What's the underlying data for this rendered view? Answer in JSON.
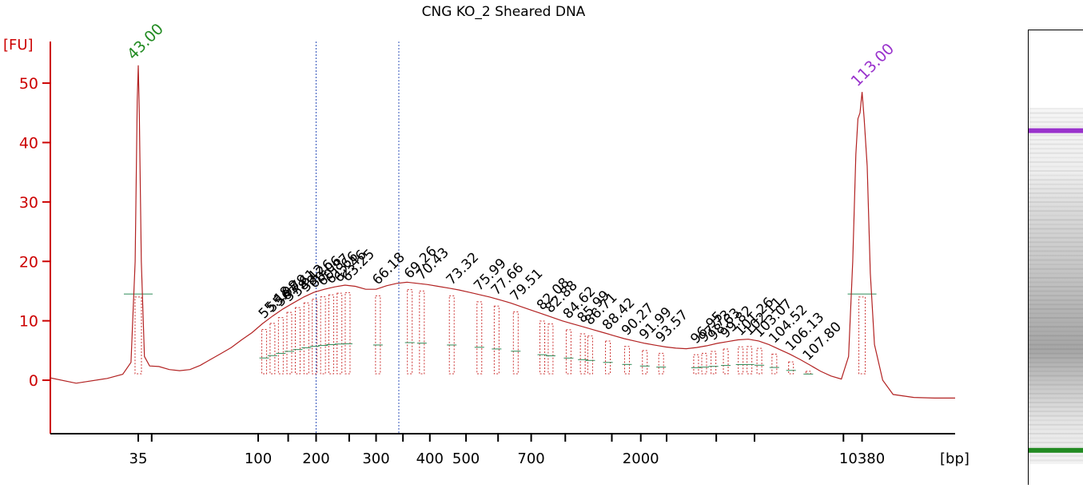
{
  "chart_data": {
    "type": "line",
    "title": "CNG KO_2 Sheared DNA",
    "ylabel": "[FU]",
    "xlabel": "[bp]",
    "ylim": [
      -9,
      57
    ],
    "y_ticks": [
      0,
      10,
      20,
      30,
      40,
      50
    ],
    "x_tick_labels": [
      "35",
      "100",
      "200",
      "300",
      "400",
      "500",
      "700",
      "2000",
      "10380"
    ],
    "x_tick_times": [
      43.0,
      54.6,
      60.2,
      66.0,
      71.2,
      74.7,
      81.0,
      91.6,
      113.0
    ],
    "x_minor_tick_times": [
      44.3,
      57.5,
      63.4,
      68.6,
      77.8,
      84.3,
      88.8,
      94.1,
      98.9,
      102.6,
      111.2
    ],
    "x_time_range": [
      34.5,
      122.0
    ],
    "markers": [
      {
        "label": "43.00",
        "time": 43.0,
        "color": "#228b22"
      },
      {
        "label": "113.00",
        "time": 113.0,
        "color": "#9932cc"
      }
    ],
    "region_lines_time": [
      60.2,
      68.2
    ],
    "peak_labels": [
      "55.18",
      "55.98",
      "56.79",
      "57.61",
      "58.42",
      "59.26",
      "60.06",
      "60.87",
      "61.66",
      "62.46",
      "63.25",
      "66.18",
      "69.26",
      "70.43",
      "73.32",
      "75.99",
      "77.66",
      "79.51",
      "82.08",
      "82.88",
      "84.62",
      "85.99",
      "86.71",
      "88.42",
      "90.27",
      "91.99",
      "93.57",
      "96.95",
      "97.73",
      "98.63",
      "99.82",
      "101.26",
      "102.11",
      "103.07",
      "104.52",
      "106.13",
      "107.80"
    ],
    "series": [
      {
        "points": [
          [
            34.5,
            0.4
          ],
          [
            37,
            -0.5
          ],
          [
            40,
            0.3
          ],
          [
            41.5,
            1.0
          ],
          [
            42.3,
            3.0
          ],
          [
            42.7,
            20
          ],
          [
            42.9,
            47
          ],
          [
            43.0,
            53
          ],
          [
            43.1,
            45
          ],
          [
            43.3,
            20
          ],
          [
            43.6,
            4
          ],
          [
            44.1,
            2.4
          ],
          [
            45,
            2.3
          ],
          [
            46,
            1.8
          ],
          [
            47,
            1.6
          ],
          [
            48,
            1.8
          ],
          [
            49,
            2.5
          ],
          [
            50,
            3.5
          ],
          [
            51,
            4.5
          ],
          [
            52,
            5.5
          ],
          [
            53,
            6.8
          ],
          [
            54,
            8.0
          ],
          [
            55,
            9.5
          ],
          [
            56,
            10.8
          ],
          [
            57,
            12.0
          ],
          [
            58,
            13.0
          ],
          [
            59,
            14.0
          ],
          [
            60,
            14.8
          ],
          [
            61,
            15.3
          ],
          [
            62,
            15.7
          ],
          [
            63,
            16.0
          ],
          [
            64,
            15.8
          ],
          [
            65,
            15.3
          ],
          [
            66,
            15.3
          ],
          [
            67,
            15.9
          ],
          [
            68,
            16.3
          ],
          [
            69,
            16.5
          ],
          [
            70,
            16.3
          ],
          [
            71,
            16.1
          ],
          [
            72,
            15.8
          ],
          [
            73,
            15.5
          ],
          [
            74,
            15.2
          ],
          [
            75,
            14.8
          ],
          [
            76,
            14.4
          ],
          [
            77,
            14.0
          ],
          [
            78,
            13.5
          ],
          [
            79,
            13.0
          ],
          [
            80,
            12.4
          ],
          [
            81,
            11.8
          ],
          [
            82,
            11.2
          ],
          [
            83,
            10.6
          ],
          [
            84,
            10.0
          ],
          [
            85,
            9.5
          ],
          [
            86,
            9.0
          ],
          [
            87,
            8.5
          ],
          [
            88,
            8.0
          ],
          [
            89,
            7.5
          ],
          [
            90,
            7.0
          ],
          [
            91,
            6.6
          ],
          [
            92,
            6.2
          ],
          [
            93,
            5.9
          ],
          [
            94,
            5.6
          ],
          [
            95,
            5.4
          ],
          [
            96,
            5.3
          ],
          [
            97,
            5.5
          ],
          [
            98,
            5.8
          ],
          [
            99,
            6.2
          ],
          [
            100,
            6.5
          ],
          [
            101,
            6.8
          ],
          [
            102,
            6.9
          ],
          [
            103,
            6.6
          ],
          [
            104,
            6.0
          ],
          [
            105,
            5.2
          ],
          [
            106,
            4.4
          ],
          [
            107,
            3.5
          ],
          [
            108,
            2.5
          ],
          [
            109,
            1.5
          ],
          [
            110,
            0.7
          ],
          [
            111,
            0.2
          ],
          [
            111.7,
            4
          ],
          [
            112.1,
            20
          ],
          [
            112.4,
            38
          ],
          [
            112.6,
            44
          ],
          [
            112.8,
            45
          ],
          [
            113.0,
            48.5
          ],
          [
            113.2,
            44
          ],
          [
            113.5,
            36
          ],
          [
            113.8,
            18
          ],
          [
            114.2,
            6
          ],
          [
            115,
            0
          ],
          [
            116,
            -2.4
          ],
          [
            118,
            -2.9
          ],
          [
            120,
            -3.0
          ],
          [
            122,
            -3.0
          ]
        ]
      }
    ]
  }
}
